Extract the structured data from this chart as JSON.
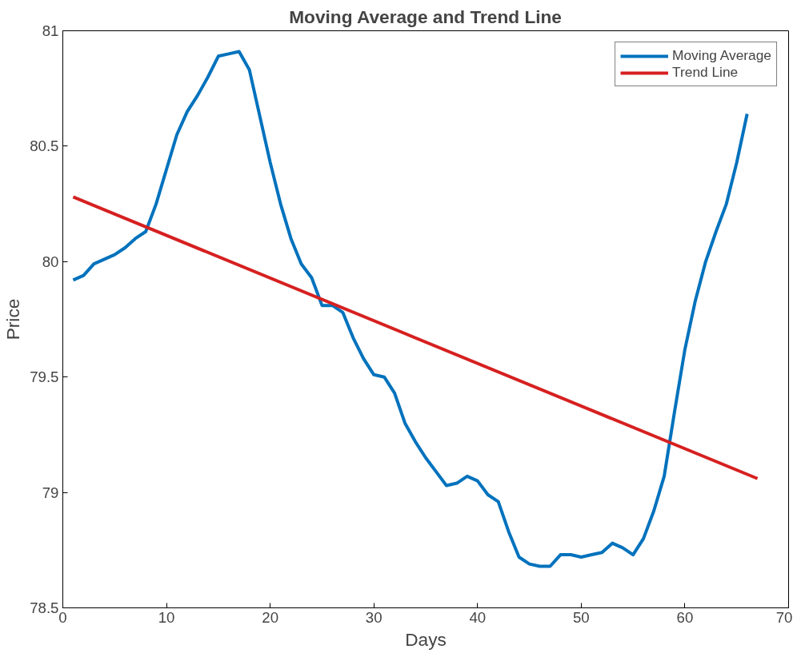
{
  "chart_data": {
    "type": "line",
    "title": "Moving Average and Trend Line",
    "xlabel": "Days",
    "ylabel": "Price",
    "xlim": [
      0,
      70
    ],
    "xticks": [
      0,
      10,
      20,
      30,
      40,
      50,
      60,
      70
    ],
    "ylim": [
      78.5,
      81
    ],
    "yticks": [
      78.5,
      79,
      79.5,
      80,
      80.5,
      81
    ],
    "grid": false,
    "legend": "top right",
    "line_style": "solid",
    "marker": "none",
    "series": [
      {
        "name": "Moving Average",
        "color": "#0072bd",
        "x": [
          1,
          2,
          3,
          4,
          5,
          6,
          7,
          8,
          9,
          10,
          11,
          12,
          13,
          14,
          15,
          16,
          17,
          18,
          19,
          20,
          21,
          22,
          23,
          24,
          25,
          26,
          27,
          28,
          29,
          30,
          31,
          32,
          33,
          34,
          35,
          36,
          37,
          38,
          39,
          40,
          41,
          42,
          43,
          44,
          45,
          46,
          47,
          48,
          49,
          50,
          51,
          52,
          53,
          54,
          55,
          56,
          57,
          58,
          59,
          60,
          61,
          62,
          63,
          64,
          65,
          66
        ],
        "values": [
          79.92,
          79.94,
          79.99,
          80.01,
          80.03,
          80.06,
          80.1,
          80.13,
          80.25,
          80.4,
          80.55,
          80.65,
          80.72,
          80.8,
          80.89,
          80.9,
          80.91,
          80.83,
          80.63,
          80.43,
          80.25,
          80.1,
          79.99,
          79.93,
          79.81,
          79.81,
          79.78,
          79.67,
          79.58,
          79.51,
          79.5,
          79.43,
          79.3,
          79.22,
          79.15,
          79.09,
          79.03,
          79.04,
          79.07,
          79.05,
          78.99,
          78.96,
          78.83,
          78.72,
          78.69,
          78.68,
          78.68,
          78.73,
          78.73,
          78.72,
          78.73,
          78.74,
          78.78,
          78.76,
          78.73,
          78.8,
          78.92,
          79.07,
          79.35,
          79.62,
          79.83,
          80.0,
          80.13,
          80.25,
          80.43,
          80.64
        ]
      },
      {
        "name": "Trend Line",
        "color": "#d62020",
        "type": "line",
        "x": [
          1,
          67
        ],
        "values": [
          80.28,
          79.06
        ]
      }
    ]
  }
}
